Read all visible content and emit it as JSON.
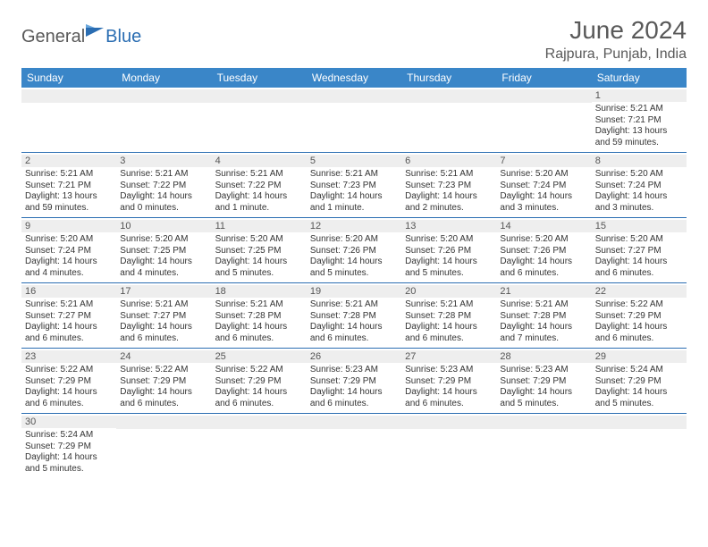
{
  "logo": {
    "general": "General",
    "blue": "Blue"
  },
  "title": "June 2024",
  "location": "Rajpura, Punjab, India",
  "weekdays": [
    "Sunday",
    "Monday",
    "Tuesday",
    "Wednesday",
    "Thursday",
    "Friday",
    "Saturday"
  ],
  "colors": {
    "header_bg": "#3a86c8",
    "header_text": "#ffffff",
    "daynum_bg": "#eeeeee",
    "week_border": "#2a6db2",
    "text": "#333333",
    "title_text": "#595959",
    "logo_blue": "#2a6db2"
  },
  "weeks": [
    [
      null,
      null,
      null,
      null,
      null,
      null,
      {
        "d": "1",
        "sr": "Sunrise: 5:21 AM",
        "ss": "Sunset: 7:21 PM",
        "dl1": "Daylight: 13 hours",
        "dl2": "and 59 minutes."
      }
    ],
    [
      {
        "d": "2",
        "sr": "Sunrise: 5:21 AM",
        "ss": "Sunset: 7:21 PM",
        "dl1": "Daylight: 13 hours",
        "dl2": "and 59 minutes."
      },
      {
        "d": "3",
        "sr": "Sunrise: 5:21 AM",
        "ss": "Sunset: 7:22 PM",
        "dl1": "Daylight: 14 hours",
        "dl2": "and 0 minutes."
      },
      {
        "d": "4",
        "sr": "Sunrise: 5:21 AM",
        "ss": "Sunset: 7:22 PM",
        "dl1": "Daylight: 14 hours",
        "dl2": "and 1 minute."
      },
      {
        "d": "5",
        "sr": "Sunrise: 5:21 AM",
        "ss": "Sunset: 7:23 PM",
        "dl1": "Daylight: 14 hours",
        "dl2": "and 1 minute."
      },
      {
        "d": "6",
        "sr": "Sunrise: 5:21 AM",
        "ss": "Sunset: 7:23 PM",
        "dl1": "Daylight: 14 hours",
        "dl2": "and 2 minutes."
      },
      {
        "d": "7",
        "sr": "Sunrise: 5:20 AM",
        "ss": "Sunset: 7:24 PM",
        "dl1": "Daylight: 14 hours",
        "dl2": "and 3 minutes."
      },
      {
        "d": "8",
        "sr": "Sunrise: 5:20 AM",
        "ss": "Sunset: 7:24 PM",
        "dl1": "Daylight: 14 hours",
        "dl2": "and 3 minutes."
      }
    ],
    [
      {
        "d": "9",
        "sr": "Sunrise: 5:20 AM",
        "ss": "Sunset: 7:24 PM",
        "dl1": "Daylight: 14 hours",
        "dl2": "and 4 minutes."
      },
      {
        "d": "10",
        "sr": "Sunrise: 5:20 AM",
        "ss": "Sunset: 7:25 PM",
        "dl1": "Daylight: 14 hours",
        "dl2": "and 4 minutes."
      },
      {
        "d": "11",
        "sr": "Sunrise: 5:20 AM",
        "ss": "Sunset: 7:25 PM",
        "dl1": "Daylight: 14 hours",
        "dl2": "and 5 minutes."
      },
      {
        "d": "12",
        "sr": "Sunrise: 5:20 AM",
        "ss": "Sunset: 7:26 PM",
        "dl1": "Daylight: 14 hours",
        "dl2": "and 5 minutes."
      },
      {
        "d": "13",
        "sr": "Sunrise: 5:20 AM",
        "ss": "Sunset: 7:26 PM",
        "dl1": "Daylight: 14 hours",
        "dl2": "and 5 minutes."
      },
      {
        "d": "14",
        "sr": "Sunrise: 5:20 AM",
        "ss": "Sunset: 7:26 PM",
        "dl1": "Daylight: 14 hours",
        "dl2": "and 6 minutes."
      },
      {
        "d": "15",
        "sr": "Sunrise: 5:20 AM",
        "ss": "Sunset: 7:27 PM",
        "dl1": "Daylight: 14 hours",
        "dl2": "and 6 minutes."
      }
    ],
    [
      {
        "d": "16",
        "sr": "Sunrise: 5:21 AM",
        "ss": "Sunset: 7:27 PM",
        "dl1": "Daylight: 14 hours",
        "dl2": "and 6 minutes."
      },
      {
        "d": "17",
        "sr": "Sunrise: 5:21 AM",
        "ss": "Sunset: 7:27 PM",
        "dl1": "Daylight: 14 hours",
        "dl2": "and 6 minutes."
      },
      {
        "d": "18",
        "sr": "Sunrise: 5:21 AM",
        "ss": "Sunset: 7:28 PM",
        "dl1": "Daylight: 14 hours",
        "dl2": "and 6 minutes."
      },
      {
        "d": "19",
        "sr": "Sunrise: 5:21 AM",
        "ss": "Sunset: 7:28 PM",
        "dl1": "Daylight: 14 hours",
        "dl2": "and 6 minutes."
      },
      {
        "d": "20",
        "sr": "Sunrise: 5:21 AM",
        "ss": "Sunset: 7:28 PM",
        "dl1": "Daylight: 14 hours",
        "dl2": "and 6 minutes."
      },
      {
        "d": "21",
        "sr": "Sunrise: 5:21 AM",
        "ss": "Sunset: 7:28 PM",
        "dl1": "Daylight: 14 hours",
        "dl2": "and 7 minutes."
      },
      {
        "d": "22",
        "sr": "Sunrise: 5:22 AM",
        "ss": "Sunset: 7:29 PM",
        "dl1": "Daylight: 14 hours",
        "dl2": "and 6 minutes."
      }
    ],
    [
      {
        "d": "23",
        "sr": "Sunrise: 5:22 AM",
        "ss": "Sunset: 7:29 PM",
        "dl1": "Daylight: 14 hours",
        "dl2": "and 6 minutes."
      },
      {
        "d": "24",
        "sr": "Sunrise: 5:22 AM",
        "ss": "Sunset: 7:29 PM",
        "dl1": "Daylight: 14 hours",
        "dl2": "and 6 minutes."
      },
      {
        "d": "25",
        "sr": "Sunrise: 5:22 AM",
        "ss": "Sunset: 7:29 PM",
        "dl1": "Daylight: 14 hours",
        "dl2": "and 6 minutes."
      },
      {
        "d": "26",
        "sr": "Sunrise: 5:23 AM",
        "ss": "Sunset: 7:29 PM",
        "dl1": "Daylight: 14 hours",
        "dl2": "and 6 minutes."
      },
      {
        "d": "27",
        "sr": "Sunrise: 5:23 AM",
        "ss": "Sunset: 7:29 PM",
        "dl1": "Daylight: 14 hours",
        "dl2": "and 6 minutes."
      },
      {
        "d": "28",
        "sr": "Sunrise: 5:23 AM",
        "ss": "Sunset: 7:29 PM",
        "dl1": "Daylight: 14 hours",
        "dl2": "and 5 minutes."
      },
      {
        "d": "29",
        "sr": "Sunrise: 5:24 AM",
        "ss": "Sunset: 7:29 PM",
        "dl1": "Daylight: 14 hours",
        "dl2": "and 5 minutes."
      }
    ],
    [
      {
        "d": "30",
        "sr": "Sunrise: 5:24 AM",
        "ss": "Sunset: 7:29 PM",
        "dl1": "Daylight: 14 hours",
        "dl2": "and 5 minutes."
      },
      null,
      null,
      null,
      null,
      null,
      null
    ]
  ]
}
